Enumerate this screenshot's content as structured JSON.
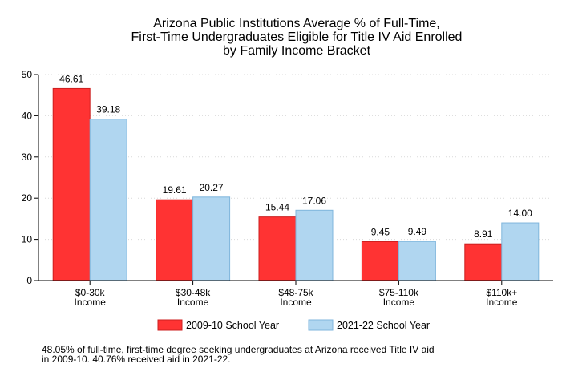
{
  "chart_data": {
    "type": "bar",
    "title_lines": [
      "Arizona Public Institutions Average % of Full-Time,",
      "First-Time Undergraduates Eligible for Title IV Aid Enrolled",
      "by Family Income Bracket"
    ],
    "categories": [
      [
        "$0-30k",
        "Income"
      ],
      [
        "$30-48k",
        "Income"
      ],
      [
        "$48-75k",
        "Income"
      ],
      [
        "$75-110k",
        "Income"
      ],
      [
        "$110k+",
        "Income"
      ]
    ],
    "series": [
      {
        "name": "2009-10 School Year",
        "color": "#ff3333",
        "stroke": "#cc1f1f",
        "values": [
          46.61,
          19.61,
          15.44,
          9.45,
          8.91
        ],
        "labels": [
          "46.61",
          "19.61",
          "15.44",
          "9.45",
          "8.91"
        ]
      },
      {
        "name": "2021-22 School Year",
        "color": "#b0d6f0",
        "stroke": "#7fb6dc",
        "values": [
          39.18,
          20.27,
          17.06,
          9.49,
          14.0
        ],
        "labels": [
          "39.18",
          "20.27",
          "17.06",
          "9.49",
          "14.00"
        ]
      }
    ],
    "y_ticks": [
      0,
      10,
      20,
      30,
      40,
      50
    ],
    "ylim": [
      0,
      50
    ],
    "grid": true,
    "legend_position": "bottom",
    "footnote_lines": [
      "48.05% of full-time, first-time degree seeking undergraduates at Arizona received Title IV aid",
      "in 2009-10. 40.76% received aid in 2021-22."
    ]
  }
}
